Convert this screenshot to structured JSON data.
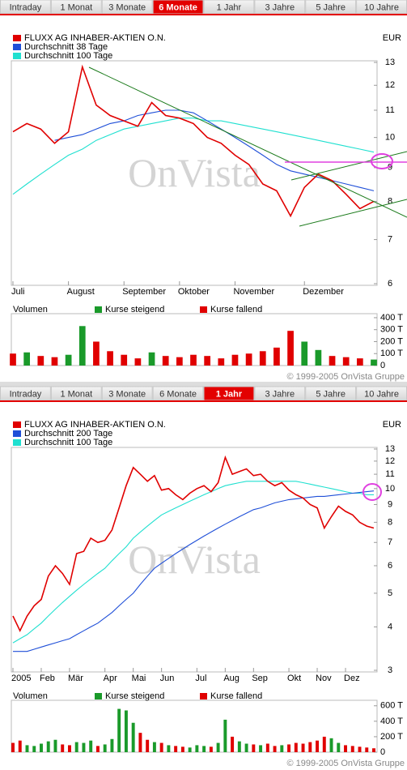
{
  "chart_data": [
    {
      "type": "line",
      "tabs": [
        "Intraday",
        "1 Monat",
        "3 Monate",
        "6 Monate",
        "1 Jahr",
        "3 Jahre",
        "5 Jahre",
        "10 Jahre"
      ],
      "active_tab": 3,
      "currency": "EUR",
      "watermark": "OnVista",
      "yscale": "log",
      "ylim": [
        6,
        13
      ],
      "yticks": [
        6,
        7,
        8,
        9,
        10,
        11,
        12,
        13
      ],
      "categories": [
        "Juli",
        null,
        null,
        null,
        "August",
        null,
        null,
        null,
        "September",
        null,
        null,
        null,
        "Oktober",
        null,
        null,
        null,
        "November",
        null,
        null,
        null,
        null,
        "Dezember",
        null,
        null,
        null,
        null,
        null
      ],
      "series": [
        {
          "name": "FLUXX AG INHABER-AKTIEN O.N.",
          "color": "#e00000",
          "values": [
            10.2,
            10.5,
            10.3,
            9.8,
            10.2,
            12.8,
            11.2,
            10.8,
            10.6,
            10.4,
            11.3,
            10.8,
            10.7,
            10.5,
            10.0,
            9.8,
            9.4,
            9.1,
            8.5,
            8.3,
            7.6,
            8.4,
            8.8,
            8.6,
            8.2,
            7.8,
            8.0
          ]
        },
        {
          "name": "Durchschnitt 38 Tage",
          "color": "#1f4fd8",
          "values": [
            null,
            null,
            null,
            9.9,
            10.0,
            10.1,
            10.3,
            10.5,
            10.6,
            10.8,
            10.9,
            11.0,
            11.0,
            10.9,
            10.6,
            10.3,
            10.0,
            9.7,
            9.4,
            9.1,
            8.9,
            8.8,
            8.7,
            8.6,
            8.5,
            8.4,
            8.3
          ]
        },
        {
          "name": "Durchschnitt 100 Tage",
          "color": "#20e0d0",
          "values": [
            8.2,
            8.5,
            8.8,
            9.1,
            9.4,
            9.6,
            9.9,
            10.1,
            10.3,
            10.4,
            10.5,
            10.6,
            10.7,
            10.7,
            10.6,
            10.6,
            10.5,
            10.4,
            10.3,
            10.2,
            10.1,
            10.0,
            9.9,
            9.8,
            9.7,
            9.6,
            9.5
          ]
        }
      ],
      "volume_label": "Volumen",
      "volume_ylim": [
        0,
        420
      ],
      "volume_yticks": [
        {
          "value": 0,
          "label": "0"
        },
        {
          "value": 100,
          "label": "100 T"
        },
        {
          "value": 200,
          "label": "200 T"
        },
        {
          "value": 300,
          "label": "300 T"
        },
        {
          "value": 400,
          "label": "400 T"
        }
      ],
      "volume_series": [
        {
          "name": "Kurse steigend",
          "color": "#1a9a2a",
          "values": [
            null,
            110,
            null,
            null,
            90,
            330,
            null,
            null,
            null,
            null,
            110,
            null,
            null,
            null,
            null,
            null,
            null,
            null,
            null,
            null,
            null,
            200,
            130,
            null,
            null,
            null,
            50
          ]
        },
        {
          "name": "Kurse fallend",
          "color": "#e00000",
          "values": [
            100,
            null,
            80,
            70,
            null,
            null,
            200,
            120,
            90,
            60,
            null,
            80,
            70,
            90,
            80,
            60,
            90,
            100,
            120,
            150,
            290,
            null,
            null,
            80,
            70,
            60,
            null
          ]
        }
      ],
      "source": "© 1999-2005 OnVista Gruppe"
    },
    {
      "type": "line",
      "tabs": [
        "Intraday",
        "1 Monat",
        "3 Monate",
        "6 Monate",
        "1 Jahr",
        "3 Jahre",
        "5 Jahre",
        "10 Jahre"
      ],
      "active_tab": 4,
      "currency": "EUR",
      "watermark": "OnVista",
      "yscale": "log",
      "ylim": [
        3,
        13
      ],
      "yticks": [
        3,
        4,
        5,
        6,
        7,
        8,
        9,
        10,
        11,
        12,
        13
      ],
      "categories": [
        "2005",
        null,
        null,
        null,
        "Feb",
        null,
        null,
        null,
        "Mär",
        null,
        null,
        null,
        null,
        "Apr",
        null,
        null,
        null,
        "Mai",
        null,
        null,
        null,
        "Jun",
        null,
        null,
        null,
        null,
        "Jul",
        null,
        null,
        null,
        "Aug",
        null,
        null,
        null,
        "Sep",
        null,
        null,
        null,
        null,
        "Okt",
        null,
        null,
        null,
        "Nov",
        null,
        null,
        null,
        "Dez",
        null,
        null,
        null,
        null
      ],
      "series": [
        {
          "name": "FLUXX AG INHABER-AKTIEN O.N.",
          "color": "#e00000",
          "values": [
            4.3,
            3.9,
            4.3,
            4.6,
            4.8,
            5.6,
            6.0,
            5.7,
            5.3,
            6.5,
            6.6,
            7.2,
            7.0,
            7.1,
            7.6,
            8.8,
            10.2,
            11.5,
            11.0,
            10.5,
            10.9,
            9.9,
            10.0,
            9.6,
            9.3,
            9.7,
            10.0,
            10.2,
            9.8,
            10.4,
            12.3,
            11.0,
            11.2,
            11.4,
            10.9,
            11.0,
            10.5,
            10.2,
            10.4,
            9.9,
            9.6,
            9.4,
            9.0,
            8.8,
            7.7,
            8.3,
            8.9,
            8.6,
            8.4,
            8.0,
            7.8,
            7.7
          ]
        },
        {
          "name": "Durchschnitt 200 Tage",
          "color": "#1f4fd8",
          "values": [
            3.4,
            3.4,
            3.4,
            3.45,
            3.5,
            3.55,
            3.6,
            3.65,
            3.7,
            3.8,
            3.9,
            4.0,
            4.1,
            4.25,
            4.4,
            4.6,
            4.8,
            5.0,
            5.3,
            5.6,
            5.9,
            6.1,
            6.3,
            6.5,
            6.7,
            6.9,
            7.1,
            7.3,
            7.5,
            7.7,
            7.9,
            8.1,
            8.3,
            8.5,
            8.7,
            8.8,
            8.95,
            9.1,
            9.2,
            9.3,
            9.35,
            9.4,
            9.45,
            9.5,
            9.5,
            9.55,
            9.6,
            9.65,
            9.7,
            9.75,
            9.8,
            9.85
          ]
        },
        {
          "name": "Durchschnitt 100 Tage",
          "color": "#20e0d0",
          "values": [
            3.6,
            3.7,
            3.8,
            3.95,
            4.1,
            4.3,
            4.5,
            4.7,
            4.9,
            5.1,
            5.3,
            5.5,
            5.7,
            5.9,
            6.2,
            6.5,
            6.8,
            7.2,
            7.5,
            7.8,
            8.1,
            8.4,
            8.6,
            8.8,
            9.0,
            9.2,
            9.4,
            9.6,
            9.8,
            10.0,
            10.2,
            10.3,
            10.4,
            10.5,
            10.5,
            10.5,
            10.5,
            10.5,
            10.5,
            10.5,
            10.5,
            10.4,
            10.3,
            10.2,
            10.1,
            10.0,
            9.9,
            9.8,
            9.7,
            9.7,
            9.6,
            9.6
          ]
        }
      ],
      "volume_label": "Volumen",
      "volume_ylim": [
        0,
        650
      ],
      "volume_yticks": [
        {
          "value": 0,
          "label": "0"
        },
        {
          "value": 200,
          "label": "200 T"
        },
        {
          "value": 400,
          "label": "400 T"
        },
        {
          "value": 600,
          "label": "600 T"
        }
      ],
      "volume_series": [
        {
          "name": "Kurse steigend",
          "color": "#1a9a2a",
          "values": [
            null,
            null,
            90,
            80,
            110,
            140,
            160,
            null,
            null,
            130,
            120,
            150,
            null,
            100,
            170,
            560,
            540,
            380,
            null,
            null,
            130,
            null,
            90,
            null,
            null,
            60,
            90,
            80,
            null,
            120,
            420,
            null,
            140,
            110,
            null,
            90,
            null,
            null,
            90,
            null,
            null,
            null,
            null,
            null,
            null,
            180,
            120,
            null,
            null,
            null,
            null,
            null
          ]
        },
        {
          "name": "Kurse fallend",
          "color": "#e00000",
          "values": [
            120,
            150,
            null,
            null,
            null,
            null,
            null,
            100,
            90,
            null,
            null,
            null,
            80,
            null,
            null,
            null,
            null,
            null,
            250,
            160,
            null,
            120,
            null,
            80,
            70,
            null,
            null,
            null,
            70,
            null,
            null,
            200,
            null,
            null,
            100,
            null,
            110,
            80,
            null,
            100,
            120,
            110,
            130,
            150,
            200,
            null,
            null,
            90,
            80,
            70,
            60,
            50
          ]
        }
      ],
      "source": "© 1999-2005 OnVista Gruppe"
    }
  ]
}
